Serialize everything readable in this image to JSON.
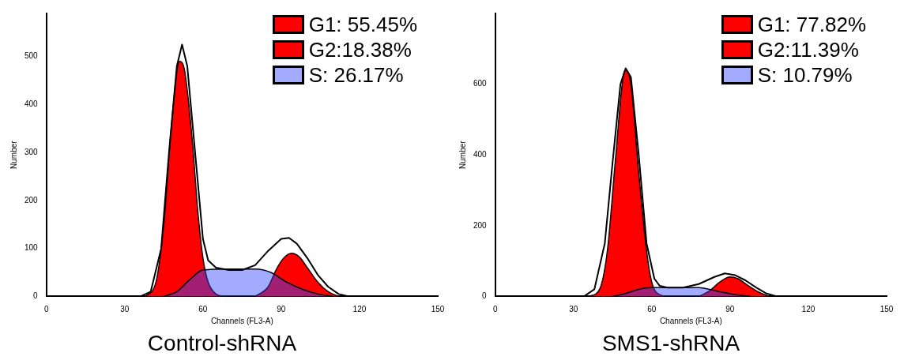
{
  "chart_data": [
    {
      "type": "area",
      "title": "Control-shRNA",
      "xlabel": "Channels (FL3-A)",
      "ylabel": "Number",
      "xlim": [
        0,
        150
      ],
      "xticks": [
        0,
        30,
        60,
        90,
        120,
        150
      ],
      "ylim": [
        0,
        590
      ],
      "yticks": [
        0,
        100,
        200,
        300,
        400,
        500
      ],
      "legend": "top right",
      "grid": false,
      "series": [
        {
          "name": "G1: 55.45%",
          "color": "#ff0000",
          "x": [
            38,
            42,
            45,
            48,
            51,
            53,
            56,
            58,
            60,
            62,
            65,
            68
          ],
          "values": [
            0,
            30,
            150,
            360,
            490,
            470,
            320,
            180,
            80,
            30,
            5,
            0
          ]
        },
        {
          "name": "G2:18.38%",
          "color": "#ff0000",
          "x": [
            80,
            85,
            88,
            91,
            94,
            97,
            100,
            104,
            108,
            112
          ],
          "values": [
            0,
            20,
            55,
            80,
            90,
            82,
            60,
            30,
            10,
            0
          ]
        },
        {
          "name": "S: 26.17%",
          "color": "#3344ff",
          "x": [
            45,
            50,
            55,
            60,
            70,
            80,
            86,
            92,
            98,
            104,
            110
          ],
          "values": [
            0,
            10,
            35,
            55,
            57,
            57,
            50,
            30,
            15,
            5,
            0
          ]
        },
        {
          "type": "line",
          "color": "#000000",
          "x": [
            0,
            36,
            40,
            44,
            47,
            50,
            52,
            54,
            57,
            60,
            62,
            65,
            70,
            75,
            80,
            85,
            90,
            93,
            96,
            100,
            104,
            108,
            112,
            116,
            150
          ],
          "values": [
            0,
            0,
            10,
            100,
            300,
            480,
            525,
            480,
            300,
            120,
            75,
            60,
            55,
            55,
            65,
            95,
            120,
            122,
            110,
            80,
            45,
            20,
            5,
            0,
            0
          ]
        }
      ]
    },
    {
      "type": "area",
      "title": "SMS1-shRNA",
      "xlabel": "Channels (FL3-A)",
      "ylabel": "Number",
      "xlim": [
        0,
        150
      ],
      "xticks": [
        0,
        30,
        60,
        90,
        120,
        150
      ],
      "ylim": [
        0,
        800
      ],
      "yticks": [
        0,
        200,
        400,
        600
      ],
      "legend": "top right",
      "grid": false,
      "series": [
        {
          "name": "G1: 77.82%",
          "color": "#ff0000",
          "x": [
            36,
            40,
            43,
            46,
            49,
            50,
            52,
            55,
            58,
            60,
            63,
            66
          ],
          "values": [
            0,
            20,
            130,
            380,
            620,
            640,
            600,
            350,
            130,
            40,
            5,
            0
          ]
        },
        {
          "name": "G2:11.39%",
          "color": "#ff0000",
          "x": [
            78,
            82,
            86,
            90,
            93,
            97,
            101,
            105
          ],
          "values": [
            0,
            15,
            40,
            55,
            50,
            30,
            12,
            0
          ]
        },
        {
          "name": "S: 10.79%",
          "color": "#3344ff",
          "x": [
            45,
            50,
            55,
            60,
            70,
            78,
            85,
            92,
            98
          ],
          "values": [
            0,
            8,
            20,
            25,
            25,
            25,
            15,
            5,
            0
          ]
        },
        {
          "type": "line",
          "color": "#000000",
          "x": [
            0,
            34,
            38,
            42,
            45,
            48,
            50,
            52,
            55,
            58,
            61,
            63,
            66,
            72,
            78,
            84,
            88,
            92,
            96,
            100,
            104,
            108,
            150
          ],
          "values": [
            0,
            0,
            20,
            150,
            380,
            600,
            645,
            620,
            400,
            150,
            50,
            30,
            25,
            25,
            35,
            55,
            65,
            60,
            45,
            25,
            8,
            0,
            0
          ]
        }
      ]
    }
  ]
}
